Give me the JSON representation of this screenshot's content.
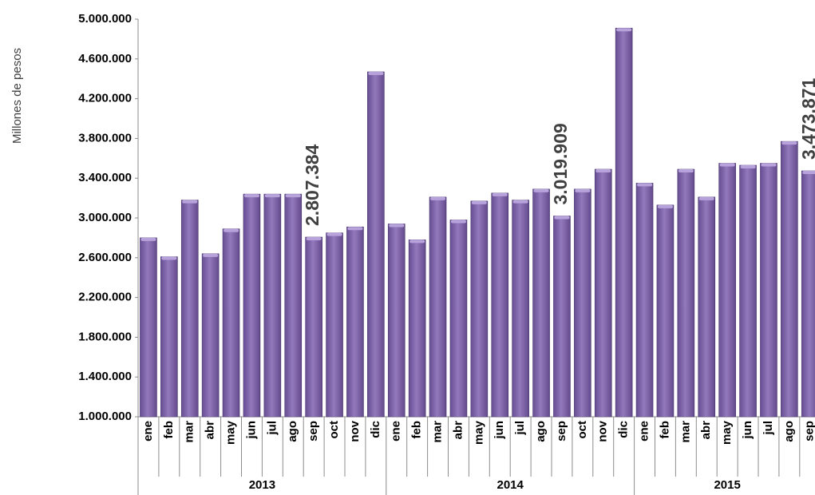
{
  "chart_data": {
    "type": "bar",
    "y_label": "Millones de pesos",
    "color": "#7b5cae",
    "ylim": [
      1000000,
      5000000
    ],
    "yticks": [
      {
        "value": 1000000,
        "label": "1.000.000"
      },
      {
        "value": 1400000,
        "label": "1.400.000"
      },
      {
        "value": 1800000,
        "label": "1.800.000"
      },
      {
        "value": 2200000,
        "label": "2.200.000"
      },
      {
        "value": 2600000,
        "label": "2.600.000"
      },
      {
        "value": 3000000,
        "label": "3.000.000"
      },
      {
        "value": 3400000,
        "label": "3.400.000"
      },
      {
        "value": 3800000,
        "label": "3.800.000"
      },
      {
        "value": 4200000,
        "label": "4.200.000"
      },
      {
        "value": 4600000,
        "label": "4.600.000"
      },
      {
        "value": 5000000,
        "label": "5.000.000"
      }
    ],
    "grid": false,
    "groups": [
      {
        "name": "2013",
        "categories": [
          "ene",
          "feb",
          "mar",
          "abr",
          "may",
          "jun",
          "jul",
          "ago",
          "sep",
          "oct",
          "nov",
          "dic"
        ],
        "values": [
          2800000,
          2610000,
          3180000,
          2640000,
          2890000,
          3240000,
          3240000,
          3240000,
          2807384,
          2850000,
          2910000,
          4470000
        ],
        "value_labels": [
          null,
          null,
          null,
          null,
          null,
          null,
          null,
          null,
          "2.807.384",
          null,
          null,
          null
        ]
      },
      {
        "name": "2014",
        "categories": [
          "ene",
          "feb",
          "mar",
          "abr",
          "may",
          "jun",
          "jul",
          "ago",
          "sep",
          "oct",
          "nov",
          "dic"
        ],
        "values": [
          2940000,
          2780000,
          3210000,
          2980000,
          3170000,
          3250000,
          3180000,
          3290000,
          3019909,
          3290000,
          3490000,
          4910000
        ],
        "value_labels": [
          null,
          null,
          null,
          null,
          null,
          null,
          null,
          null,
          "3.019.909",
          null,
          null,
          null
        ]
      },
      {
        "name": "2015",
        "categories": [
          "ene",
          "feb",
          "mar",
          "abr",
          "may",
          "jun",
          "jul",
          "ago",
          "sep"
        ],
        "values": [
          3350000,
          3130000,
          3490000,
          3210000,
          3550000,
          3530000,
          3550000,
          3770000,
          3473871
        ],
        "value_labels": [
          null,
          null,
          null,
          null,
          null,
          null,
          null,
          null,
          "3.473.871"
        ]
      }
    ]
  }
}
